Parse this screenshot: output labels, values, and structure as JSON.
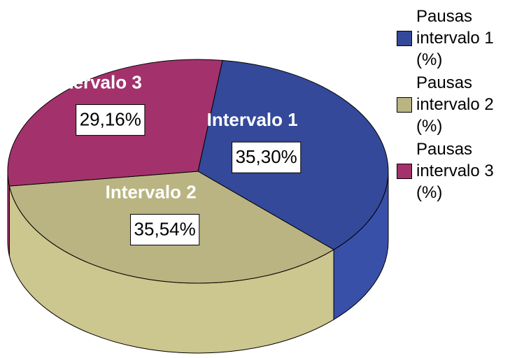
{
  "chart_data": {
    "type": "pie",
    "categories": [
      "Intervalo 1",
      "Intervalo 2",
      "Intervalo 3"
    ],
    "values": [
      35.3,
      35.54,
      29.16
    ],
    "value_labels": [
      "35,30%",
      "35,54%",
      "29,16%"
    ],
    "legend": [
      "Pausas intervalo 1 (%)",
      "Pausas intervalo 2 (%)",
      "Pausas intervalo 3 (%)"
    ],
    "colors": [
      "#34499a",
      "#b9b482",
      "#a3326c"
    ]
  }
}
